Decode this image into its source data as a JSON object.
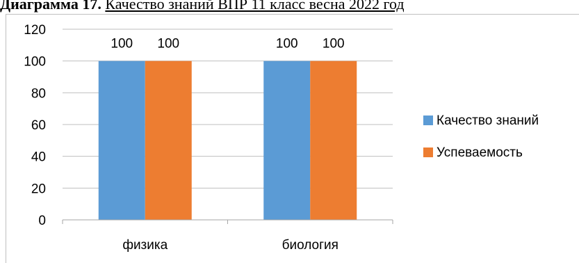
{
  "heading": {
    "prefix": "Диаграмма 17.",
    "title": "Качество знаний ВПР 11 класс весна 2022 год"
  },
  "colors": {
    "series1": "#5b9bd5",
    "series2": "#ed7d31",
    "grid": "#bfbfbf",
    "axis": "#a6a6a6"
  },
  "chart_data": {
    "type": "bar",
    "categories": [
      "физика",
      "биология"
    ],
    "series": [
      {
        "name": "Качество знаний",
        "values": [
          100,
          100
        ]
      },
      {
        "name": "Успеваемость",
        "values": [
          100,
          100
        ]
      }
    ],
    "ylim": [
      0,
      120
    ],
    "yticks": [
      0,
      20,
      40,
      60,
      80,
      100,
      120
    ],
    "data_labels": [
      "100",
      "100",
      "100",
      "100"
    ],
    "grid": true,
    "legend": "right"
  }
}
